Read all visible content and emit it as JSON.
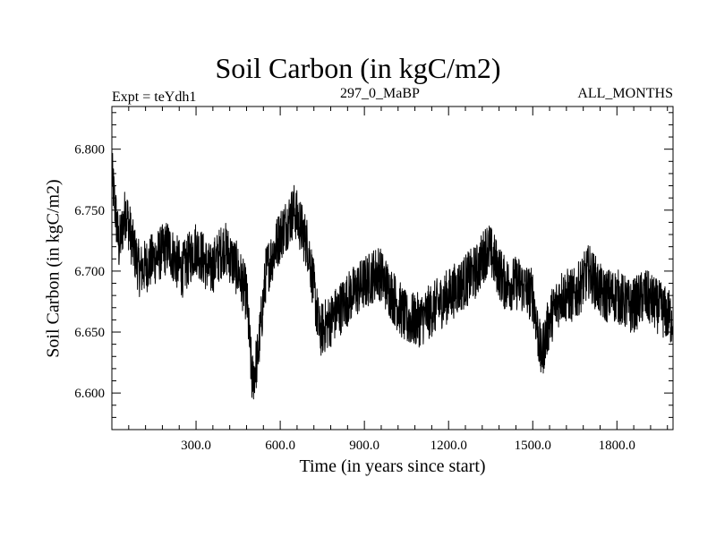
{
  "chart_data": {
    "type": "line",
    "title": "Soil Carbon (in kgC/m2)",
    "subtitle_left": "Expt = teYdh1",
    "subtitle_center": "297_0_MaBP",
    "subtitle_right": "ALL_MONTHS",
    "xlabel": "Time (in years since start)",
    "ylabel": "Soil Carbon (in kgC/m2)",
    "xlim": [
      0,
      2000
    ],
    "ylim": [
      6.57,
      6.835
    ],
    "x_ticks": [
      300,
      600,
      900,
      1200,
      1500,
      1800
    ],
    "x_tick_labels": [
      "300.0",
      "600.0",
      "900.0",
      "1200.0",
      "1500.0",
      "1800.0"
    ],
    "y_ticks": [
      6.6,
      6.65,
      6.7,
      6.75,
      6.8
    ],
    "y_tick_labels": [
      "6.600",
      "6.650",
      "6.700",
      "6.750",
      "6.800"
    ],
    "series": [
      {
        "name": "soil carbon",
        "x": [
          0,
          25,
          50,
          75,
          100,
          150,
          200,
          250,
          300,
          350,
          400,
          450,
          480,
          500,
          520,
          550,
          600,
          650,
          700,
          740,
          780,
          850,
          900,
          950,
          1000,
          1050,
          1100,
          1150,
          1200,
          1250,
          1300,
          1340,
          1400,
          1450,
          1500,
          1530,
          1560,
          1600,
          1650,
          1700,
          1750,
          1800,
          1850,
          1900,
          1950,
          2000
        ],
        "values": [
          6.78,
          6.72,
          6.75,
          6.72,
          6.7,
          6.71,
          6.72,
          6.7,
          6.72,
          6.7,
          6.72,
          6.7,
          6.68,
          6.61,
          6.63,
          6.7,
          6.73,
          6.75,
          6.72,
          6.65,
          6.66,
          6.68,
          6.69,
          6.7,
          6.68,
          6.66,
          6.66,
          6.67,
          6.68,
          6.69,
          6.7,
          6.72,
          6.69,
          6.69,
          6.68,
          6.63,
          6.66,
          6.68,
          6.68,
          6.7,
          6.68,
          6.68,
          6.67,
          6.68,
          6.67,
          6.66
        ]
      }
    ],
    "line_color": "#000000",
    "grid": false
  }
}
